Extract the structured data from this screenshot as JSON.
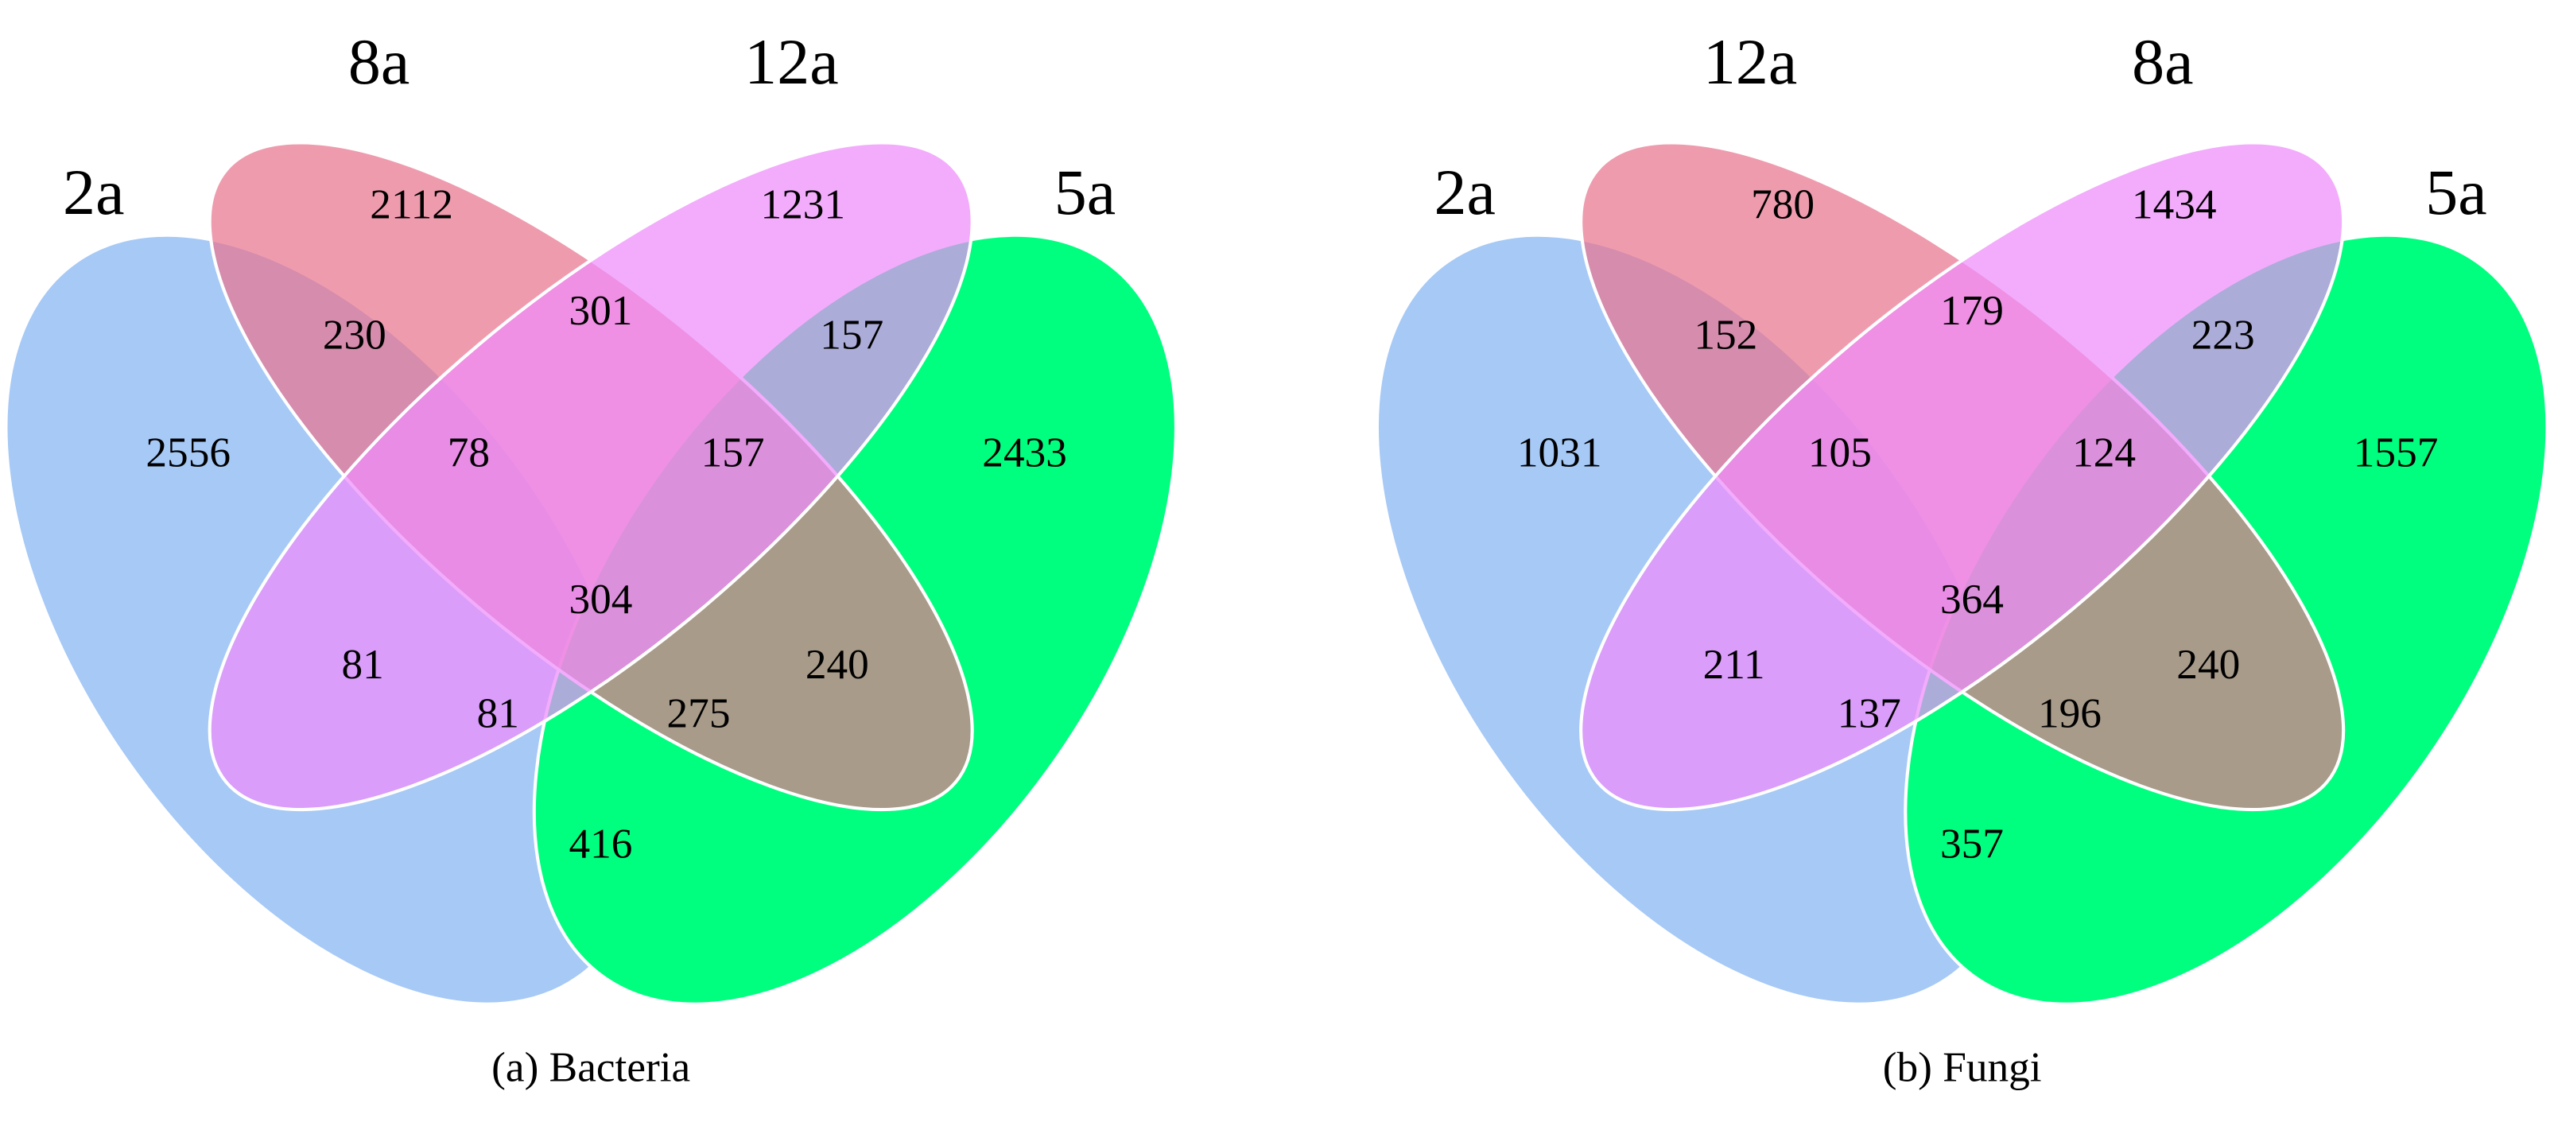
{
  "venns": [
    {
      "caption": "(a) Bacteria",
      "sets": [
        {
          "label": "2a"
        },
        {
          "label": "8a"
        },
        {
          "label": "12a"
        },
        {
          "label": "5a"
        }
      ],
      "regions": [
        2112,
        1231,
        230,
        301,
        157,
        2556,
        78,
        157,
        2433,
        304,
        81,
        240,
        81,
        275,
        416
      ]
    },
    {
      "caption": "(b) Fungi",
      "sets": [
        {
          "label": "2a"
        },
        {
          "label": "12a"
        },
        {
          "label": "8a"
        },
        {
          "label": "5a"
        }
      ],
      "regions": [
        780,
        1434,
        152,
        179,
        223,
        1031,
        105,
        124,
        1557,
        364,
        211,
        240,
        137,
        196,
        357
      ]
    }
  ]
}
